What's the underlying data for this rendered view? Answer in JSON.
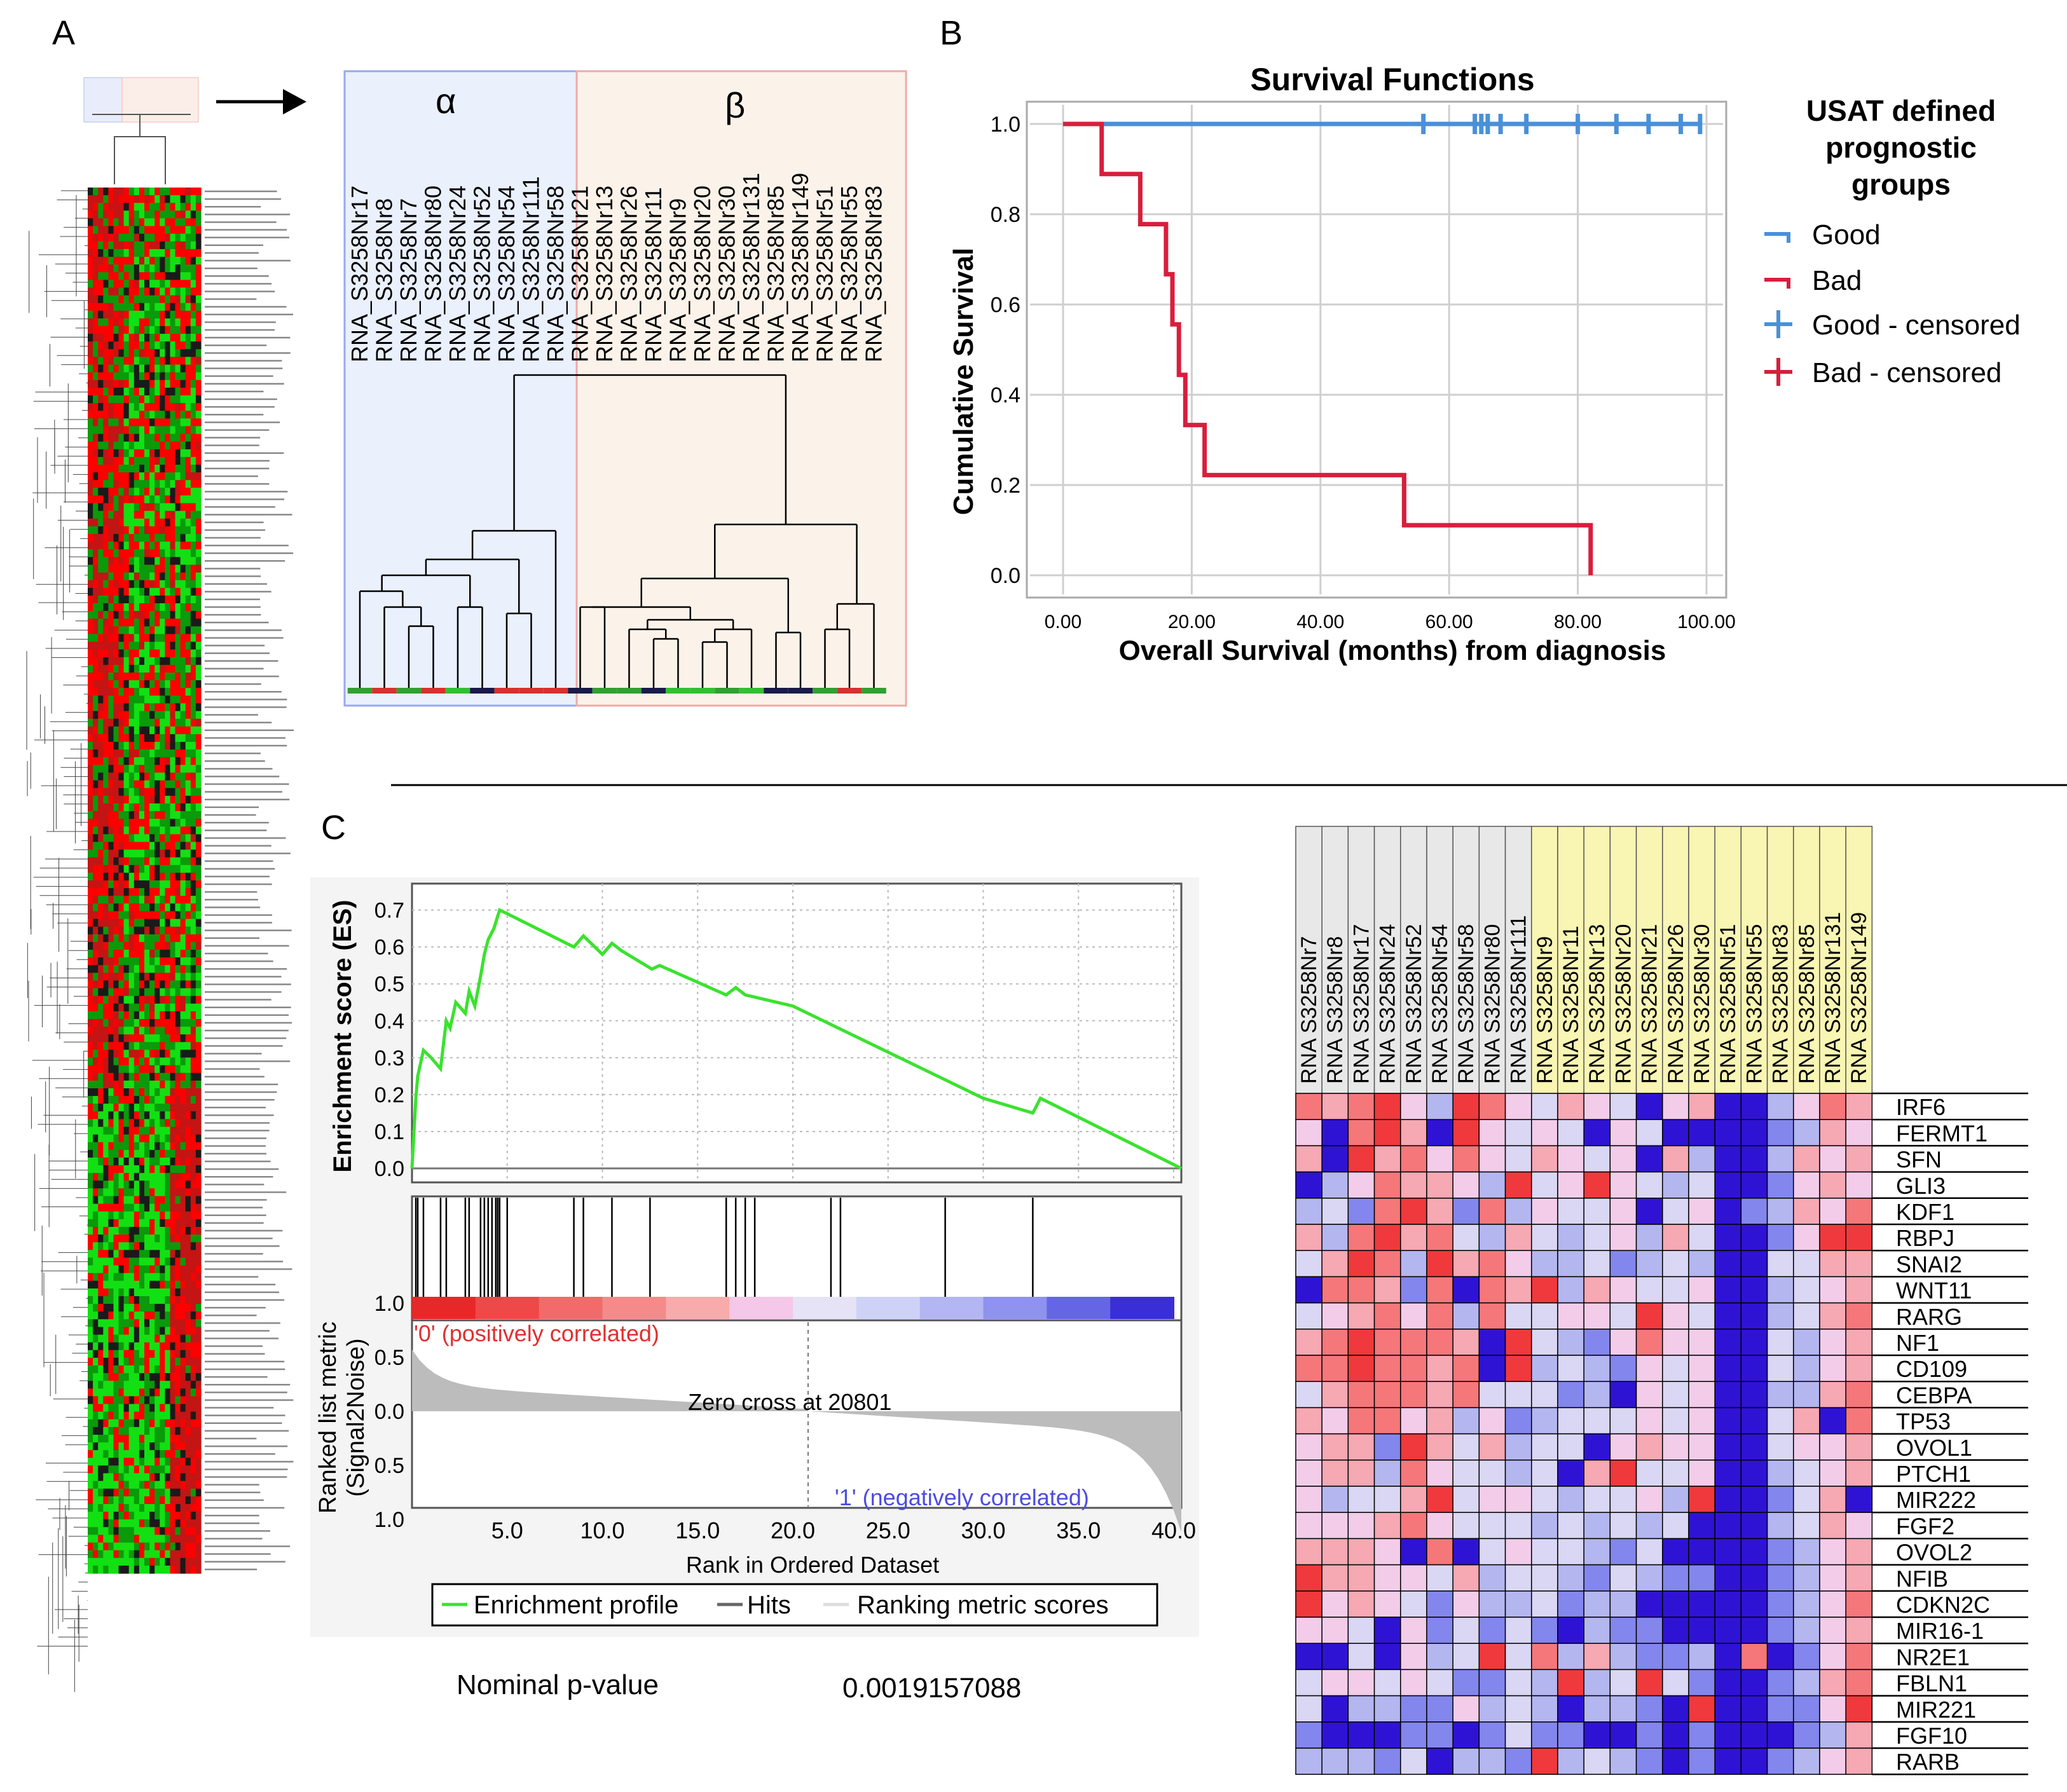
{
  "panels": {
    "a": "A",
    "b": "B",
    "c": "C"
  },
  "dendrogram": {
    "alpha": "α",
    "beta": "β",
    "alpha_samples": [
      "RNA_S3258Nr17",
      "RNA_S3258Nr8",
      "RNA_S3258Nr7",
      "RNA_S3258Nr80",
      "RNA_S3258Nr24",
      "RNA_S3258Nr52",
      "RNA_S3258Nr54",
      "RNA_S3258Nr111",
      "RNA_S3258Nr58"
    ],
    "beta_samples": [
      "RNA_S3258Nr21",
      "RNA_S3258Nr13",
      "RNA_S3258Nr26",
      "RNA_S3258Nr11",
      "RNA_S3258Nr9",
      "RNA_S3258Nr20",
      "RNA_S3258Nr30",
      "RNA_S3258Nr131",
      "RNA_S3258Nr85",
      "RNA_S3258Nr149",
      "RNA_S3258Nr51",
      "RNA_S3258Nr55",
      "RNA_S3258Nr83"
    ]
  },
  "chart_data": [
    {
      "type": "line",
      "title": "Survival Functions",
      "xlabel": "Overall Survival (months) from diagnosis",
      "ylabel": "Cumulative Survival",
      "xlim": [
        0,
        100
      ],
      "ylim": [
        0,
        1
      ],
      "xticks": [
        "0.00",
        "20.00",
        "40.00",
        "60.00",
        "80.00",
        "100.00"
      ],
      "yticks": [
        "0.0",
        "0.2",
        "0.4",
        "0.6",
        "0.8",
        "1.0"
      ],
      "legend_title": "USAT defined prognostic groups",
      "legend": [
        "Good",
        "Bad",
        "Good - censored",
        "Bad - censored"
      ],
      "colors": {
        "good": "#4a90d9",
        "bad": "#d81e3c"
      },
      "series": [
        {
          "name": "Good",
          "x": [
            0,
            99
          ],
          "y": [
            1.0,
            1.0
          ],
          "censored": [
            56,
            64,
            65,
            66,
            68,
            72,
            80,
            86,
            91,
            96,
            99
          ]
        },
        {
          "name": "Bad",
          "x": [
            0,
            6,
            6,
            12,
            12,
            16,
            16,
            17,
            17,
            18,
            18,
            19,
            19,
            20,
            20,
            21,
            21,
            22,
            22,
            53,
            53,
            82,
            82
          ],
          "y": [
            1.0,
            1.0,
            0.889,
            0.889,
            0.778,
            0.778,
            0.667,
            0.667,
            0.556,
            0.556,
            0.444,
            0.444,
            0.333,
            0.333,
            0.333,
            0.333,
            0.333,
            0.333,
            0.222,
            0.222,
            0.111,
            0.111,
            0.0
          ]
        }
      ]
    },
    {
      "type": "line",
      "title": "",
      "ylabel": "Enrichment score (ES)",
      "xlabel": "Rank in Ordered Dataset",
      "xlim": [
        0,
        40.4
      ],
      "ylim": [
        0,
        0.72
      ],
      "yticks": [
        "0.0",
        "0.1",
        "0.2",
        "0.3",
        "0.4",
        "0.5",
        "0.6",
        "0.7"
      ],
      "xticks": [
        "5.0",
        "10.0",
        "15.0",
        "20.0",
        "25.0",
        "30.0",
        "35.0",
        "40.0"
      ],
      "series": [
        {
          "name": "Enrichment profile",
          "x": [
            0,
            0.2,
            0.3,
            0.6,
            1.0,
            1.5,
            1.8,
            2.0,
            2.3,
            2.8,
            3.0,
            3.3,
            3.6,
            3.8,
            4.0,
            4.3,
            4.6,
            5.0,
            8.5,
            9.0,
            10.0,
            10.5,
            11.0,
            12.6,
            13.0,
            16.5,
            17.0,
            17.5,
            20.0,
            30.0,
            32.6,
            33.0,
            40.4
          ],
          "y": [
            0,
            0.19,
            0.25,
            0.32,
            0.3,
            0.27,
            0.4,
            0.38,
            0.45,
            0.42,
            0.48,
            0.44,
            0.52,
            0.58,
            0.62,
            0.65,
            0.7,
            0.69,
            0.6,
            0.63,
            0.58,
            0.61,
            0.59,
            0.54,
            0.55,
            0.47,
            0.49,
            0.47,
            0.44,
            0.19,
            0.15,
            0.19,
            0.0
          ]
        }
      ],
      "hits": [
        0.2,
        0.3,
        0.6,
        1.5,
        1.8,
        2.8,
        3.0,
        3.6,
        3.8,
        4.0,
        4.2,
        4.4,
        4.5,
        4.6,
        5.0,
        8.5,
        9.0,
        10.5,
        12.5,
        16.5,
        17.0,
        17.5,
        18.0,
        22.0,
        22.5,
        28.0,
        32.6
      ],
      "ranked_metric_ylabel": "Ranked list metric (Signal2Noise)",
      "ranked_yticks": [
        "1.0",
        "0.5",
        "0.0",
        "0.5",
        "1.0"
      ],
      "zero_cross": "Zero cross at 20801",
      "pos_label": "'0' (positively correlated)",
      "neg_label": "'1' (negatively correlated)",
      "legend": [
        "Enrichment profile",
        "Hits",
        "Ranking metric scores"
      ],
      "pvalue_label": "Nominal p-value",
      "pvalue": "0.0019157088"
    },
    {
      "type": "heatmap",
      "columns": [
        "RNA_S3258Nr7",
        "RNA_S3258Nr8",
        "RNA_S3258Nr17",
        "RNA_S3258Nr24",
        "RNA_S3258Nr52",
        "RNA_S3258Nr54",
        "RNA_S3258Nr58",
        "RNA_S3258Nr80",
        "RNA_S3258Nr111",
        "RNA_S3258Nr9",
        "RNA_S3258Nr11",
        "RNA_S3258Nr13",
        "RNA_S3258Nr20",
        "RNA_S3258Nr21",
        "RNA_S3258Nr26",
        "RNA_S3258Nr30",
        "RNA_S3258Nr51",
        "RNA_S3258Nr55",
        "RNA_S3258Nr83",
        "RNA_S3258Nr85",
        "RNA_S3258Nr131",
        "RNA_S3258Nr149"
      ],
      "rows": [
        "IRF6",
        "FERMT1",
        "SFN",
        "GLI3",
        "KDF1",
        "RBPJ",
        "SNAI2",
        "WNT11",
        "RARG",
        "NF1",
        "CD109",
        "CEBPA",
        "TP53",
        "OVOL1",
        "PTCH1",
        "MIR222",
        "FGF2",
        "OVOL2",
        "NFIB",
        "CDKN2C",
        "MIR16-1",
        "NR2E1",
        "FBLN1",
        "MIR221",
        "FGF10",
        "RARB"
      ],
      "group_colors": {
        "alpha": "#e8e8e8",
        "beta": "#f9f5b3"
      },
      "palette": [
        "#f0393c",
        "#f5777a",
        "#f6a8b3",
        "#f3ccea",
        "#d9d7f3",
        "#b4b6f0",
        "#8386ec",
        "#2f13d5"
      ],
      "values": [
        [
          1,
          2,
          1,
          0,
          3,
          5,
          0,
          1,
          3,
          4,
          2,
          3,
          4,
          7,
          3,
          2,
          7,
          7,
          5,
          3,
          1,
          2
        ],
        [
          3,
          7,
          1,
          0,
          2,
          7,
          0,
          3,
          4,
          3,
          4,
          7,
          3,
          4,
          7,
          7,
          7,
          7,
          6,
          5,
          2,
          3
        ],
        [
          2,
          7,
          0,
          2,
          1,
          3,
          1,
          3,
          4,
          2,
          3,
          4,
          3,
          7,
          2,
          5,
          7,
          7,
          5,
          2,
          3,
          2
        ],
        [
          7,
          5,
          3,
          1,
          2,
          2,
          3,
          5,
          0,
          4,
          3,
          0,
          3,
          4,
          5,
          4,
          7,
          7,
          6,
          3,
          2,
          3
        ],
        [
          5,
          4,
          6,
          1,
          0,
          2,
          6,
          1,
          5,
          3,
          4,
          4,
          3,
          7,
          4,
          3,
          7,
          6,
          5,
          2,
          3,
          1
        ],
        [
          2,
          5,
          1,
          0,
          2,
          1,
          4,
          5,
          2,
          4,
          5,
          4,
          3,
          5,
          2,
          4,
          7,
          7,
          6,
          3,
          0,
          0
        ],
        [
          4,
          2,
          0,
          1,
          5,
          0,
          2,
          1,
          3,
          5,
          5,
          4,
          6,
          5,
          4,
          5,
          7,
          7,
          4,
          4,
          2,
          2
        ],
        [
          7,
          1,
          1,
          2,
          6,
          1,
          7,
          1,
          2,
          0,
          5,
          2,
          3,
          4,
          4,
          3,
          7,
          7,
          5,
          4,
          3,
          2
        ],
        [
          4,
          3,
          2,
          1,
          3,
          1,
          5,
          1,
          4,
          4,
          3,
          3,
          4,
          0,
          3,
          4,
          7,
          7,
          5,
          4,
          2,
          1
        ],
        [
          2,
          1,
          0,
          1,
          1,
          1,
          2,
          7,
          0,
          4,
          5,
          6,
          3,
          1,
          3,
          3,
          7,
          7,
          4,
          5,
          3,
          2
        ],
        [
          1,
          1,
          0,
          1,
          1,
          2,
          1,
          7,
          0,
          5,
          4,
          5,
          6,
          3,
          4,
          3,
          7,
          7,
          4,
          5,
          3,
          2
        ],
        [
          4,
          2,
          1,
          1,
          1,
          2,
          1,
          4,
          4,
          4,
          6,
          5,
          7,
          3,
          4,
          3,
          7,
          7,
          5,
          5,
          2,
          1
        ],
        [
          2,
          3,
          1,
          1,
          3,
          2,
          5,
          3,
          6,
          5,
          4,
          4,
          4,
          3,
          4,
          3,
          7,
          7,
          4,
          2,
          7,
          1
        ],
        [
          3,
          2,
          2,
          6,
          0,
          2,
          4,
          2,
          5,
          4,
          4,
          7,
          3,
          2,
          3,
          3,
          7,
          7,
          4,
          3,
          3,
          2
        ],
        [
          3,
          2,
          2,
          5,
          1,
          3,
          4,
          4,
          5,
          4,
          7,
          2,
          0,
          4,
          4,
          3,
          7,
          7,
          5,
          4,
          3,
          2
        ],
        [
          3,
          5,
          4,
          4,
          2,
          0,
          4,
          3,
          3,
          4,
          5,
          4,
          4,
          3,
          5,
          0,
          7,
          7,
          6,
          4,
          2,
          7
        ],
        [
          3,
          3,
          3,
          2,
          1,
          3,
          4,
          4,
          4,
          5,
          4,
          5,
          4,
          5,
          4,
          7,
          7,
          7,
          5,
          4,
          2,
          3
        ],
        [
          2,
          2,
          2,
          3,
          7,
          1,
          7,
          4,
          3,
          4,
          4,
          5,
          6,
          4,
          7,
          7,
          7,
          7,
          6,
          5,
          3,
          2
        ],
        [
          0,
          2,
          2,
          3,
          3,
          4,
          2,
          5,
          4,
          4,
          5,
          6,
          4,
          5,
          6,
          6,
          7,
          7,
          6,
          5,
          3,
          2
        ],
        [
          0,
          3,
          2,
          3,
          4,
          6,
          3,
          5,
          5,
          4,
          6,
          5,
          5,
          7,
          7,
          7,
          7,
          7,
          6,
          5,
          3,
          1
        ],
        [
          3,
          3,
          4,
          7,
          3,
          6,
          4,
          6,
          4,
          6,
          7,
          5,
          6,
          6,
          7,
          7,
          7,
          7,
          6,
          5,
          3,
          2
        ],
        [
          7,
          7,
          4,
          7,
          3,
          5,
          4,
          0,
          4,
          1,
          5,
          2,
          5,
          6,
          6,
          5,
          7,
          1,
          7,
          6,
          3,
          1
        ],
        [
          4,
          3,
          3,
          4,
          3,
          4,
          6,
          6,
          4,
          5,
          0,
          5,
          4,
          0,
          4,
          6,
          7,
          7,
          6,
          5,
          2,
          1
        ],
        [
          4,
          7,
          5,
          5,
          6,
          6,
          3,
          5,
          4,
          5,
          7,
          5,
          5,
          6,
          7,
          0,
          7,
          7,
          6,
          6,
          3,
          0
        ],
        [
          6,
          7,
          7,
          7,
          6,
          6,
          7,
          6,
          4,
          6,
          6,
          7,
          7,
          6,
          7,
          6,
          7,
          7,
          7,
          6,
          5,
          2
        ],
        [
          5,
          5,
          5,
          6,
          4,
          7,
          5,
          5,
          6,
          0,
          5,
          4,
          5,
          6,
          7,
          6,
          7,
          7,
          6,
          5,
          3,
          2
        ]
      ]
    }
  ]
}
